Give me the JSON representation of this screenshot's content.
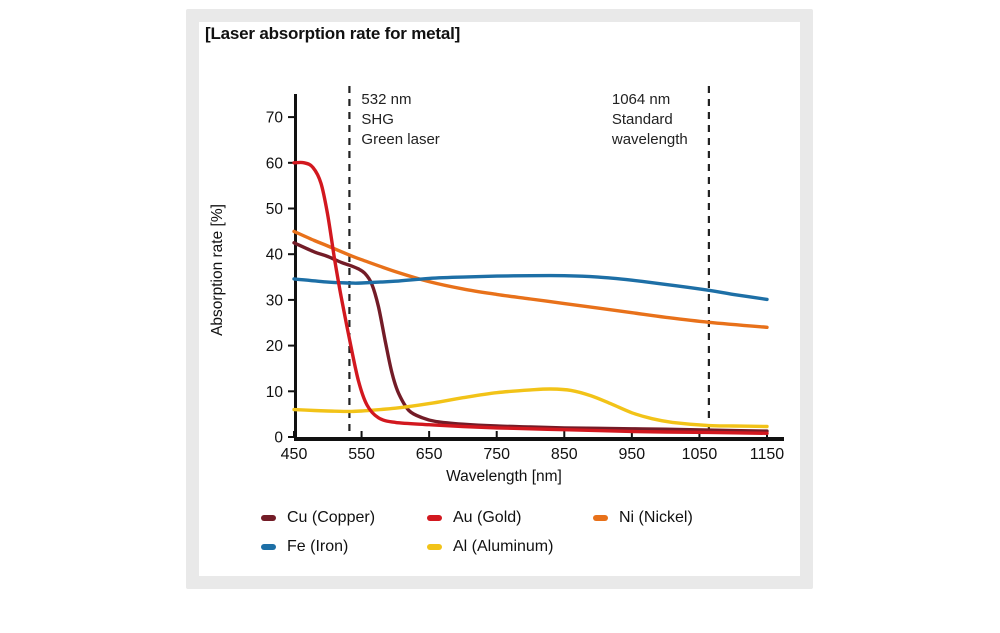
{
  "panel": {
    "background": "#e9e9e9",
    "card_background": "#ffffff"
  },
  "chart_data": {
    "type": "line",
    "title": "[Laser absorption rate for metal]",
    "xlabel": "Wavelength [nm]",
    "ylabel": "Absorption rate [%]",
    "xlim": [
      450,
      1150
    ],
    "ylim": [
      0,
      70
    ],
    "x_ticks": [
      450,
      550,
      650,
      750,
      850,
      950,
      1050,
      1150
    ],
    "y_ticks": [
      0,
      10,
      20,
      30,
      40,
      50,
      60,
      70
    ],
    "grid": false,
    "legend_position": "bottom",
    "axis_color": "#111111",
    "annotations": [
      {
        "x": 532,
        "style": "dashed-vertical",
        "label_side": "right",
        "lines": [
          "532 nm",
          "SHG",
          "Green laser"
        ]
      },
      {
        "x": 1064,
        "style": "dashed-vertical",
        "label_side": "left",
        "lines": [
          "1064 nm",
          "Standard",
          "wavelength"
        ]
      }
    ],
    "series": [
      {
        "name": "Cu (Copper)",
        "color": "#731c27",
        "points": [
          [
            450,
            42.5
          ],
          [
            480,
            40.5
          ],
          [
            500,
            39.5
          ],
          [
            520,
            38.2
          ],
          [
            532,
            37.6
          ],
          [
            545,
            36.8
          ],
          [
            555,
            35.8
          ],
          [
            565,
            33.5
          ],
          [
            575,
            28.5
          ],
          [
            585,
            21.0
          ],
          [
            595,
            14.0
          ],
          [
            605,
            9.5
          ],
          [
            620,
            5.8
          ],
          [
            640,
            4.2
          ],
          [
            660,
            3.4
          ],
          [
            700,
            2.8
          ],
          [
            750,
            2.4
          ],
          [
            800,
            2.2
          ],
          [
            850,
            2.0
          ],
          [
            900,
            1.9
          ],
          [
            950,
            1.8
          ],
          [
            1000,
            1.7
          ],
          [
            1064,
            1.5
          ],
          [
            1150,
            1.3
          ]
        ]
      },
      {
        "name": "Au (Gold)",
        "color": "#d2181f",
        "points": [
          [
            450,
            60.0
          ],
          [
            465,
            60.0
          ],
          [
            478,
            59.0
          ],
          [
            490,
            55.5
          ],
          [
            500,
            48.5
          ],
          [
            510,
            39.0
          ],
          [
            520,
            30.5
          ],
          [
            532,
            21.5
          ],
          [
            545,
            12.5
          ],
          [
            558,
            7.0
          ],
          [
            575,
            4.2
          ],
          [
            600,
            3.2
          ],
          [
            650,
            2.7
          ],
          [
            700,
            2.3
          ],
          [
            750,
            2.0
          ],
          [
            800,
            1.8
          ],
          [
            850,
            1.6
          ],
          [
            900,
            1.4
          ],
          [
            950,
            1.2
          ],
          [
            1000,
            1.1
          ],
          [
            1064,
            1.0
          ],
          [
            1150,
            0.8
          ]
        ]
      },
      {
        "name": "Ni (Nickel)",
        "color": "#e8711a",
        "points": [
          [
            450,
            45.0
          ],
          [
            480,
            43.0
          ],
          [
            500,
            41.8
          ],
          [
            532,
            39.8
          ],
          [
            550,
            38.8
          ],
          [
            600,
            36.2
          ],
          [
            650,
            34.0
          ],
          [
            700,
            32.4
          ],
          [
            750,
            31.2
          ],
          [
            800,
            30.2
          ],
          [
            850,
            29.2
          ],
          [
            900,
            28.2
          ],
          [
            950,
            27.2
          ],
          [
            1000,
            26.2
          ],
          [
            1064,
            25.1
          ],
          [
            1150,
            24.0
          ]
        ]
      },
      {
        "name": "Fe (Iron)",
        "color": "#1d6fa6",
        "points": [
          [
            450,
            34.6
          ],
          [
            500,
            33.9
          ],
          [
            532,
            33.7
          ],
          [
            550,
            33.7
          ],
          [
            600,
            34.1
          ],
          [
            650,
            34.7
          ],
          [
            700,
            35.0
          ],
          [
            750,
            35.2
          ],
          [
            800,
            35.3
          ],
          [
            850,
            35.3
          ],
          [
            900,
            35.0
          ],
          [
            950,
            34.3
          ],
          [
            1000,
            33.4
          ],
          [
            1064,
            32.1
          ],
          [
            1100,
            31.2
          ],
          [
            1150,
            30.1
          ]
        ]
      },
      {
        "name": "Al (Aluminum)",
        "color": "#f2c318",
        "points": [
          [
            450,
            6.0
          ],
          [
            480,
            5.8
          ],
          [
            500,
            5.7
          ],
          [
            532,
            5.6
          ],
          [
            550,
            5.7
          ],
          [
            600,
            6.3
          ],
          [
            650,
            7.3
          ],
          [
            700,
            8.6
          ],
          [
            750,
            9.7
          ],
          [
            800,
            10.3
          ],
          [
            830,
            10.5
          ],
          [
            860,
            10.2
          ],
          [
            890,
            9.0
          ],
          [
            920,
            7.2
          ],
          [
            950,
            5.3
          ],
          [
            980,
            4.0
          ],
          [
            1010,
            3.2
          ],
          [
            1064,
            2.5
          ],
          [
            1100,
            2.4
          ],
          [
            1150,
            2.3
          ]
        ]
      }
    ]
  }
}
